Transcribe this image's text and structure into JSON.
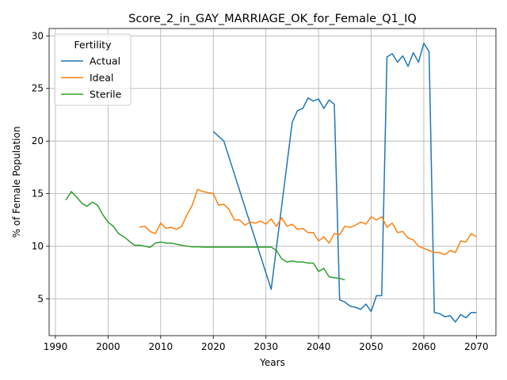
{
  "chart_data": {
    "type": "line",
    "title": "Score_2_in_GAY_MARRIAGE_OK_for_Female_Q1_IQ",
    "xlabel": "Years",
    "ylabel": "% of Female Population",
    "xlim": [
      1988.8,
      2073.7
    ],
    "ylim": [
      1.5,
      30.7
    ],
    "xticks": [
      1990,
      2000,
      2010,
      2020,
      2030,
      2040,
      2050,
      2060,
      2070
    ],
    "yticks": [
      5,
      10,
      15,
      20,
      25,
      30
    ],
    "grid": true,
    "legend": {
      "title": "Fertility",
      "placement": "upper-left"
    },
    "series": [
      {
        "name": "Actual",
        "color": "#1f77b4",
        "x": [
          2020,
          2022,
          2031,
          2035,
          2036,
          2037,
          2038,
          2039,
          2040,
          2041,
          2042,
          2043,
          2044,
          2045,
          2046,
          2047,
          2048,
          2049,
          2050,
          2051,
          2052,
          2053,
          2054,
          2055,
          2056,
          2057,
          2058,
          2059,
          2060,
          2061,
          2062,
          2063,
          2064,
          2065,
          2066,
          2067,
          2068,
          2069,
          2070
        ],
        "y": [
          20.9,
          20.0,
          5.9,
          21.8,
          22.9,
          23.1,
          24.1,
          23.8,
          24.0,
          23.1,
          23.9,
          23.5,
          4.9,
          4.7,
          4.3,
          4.2,
          4.0,
          4.5,
          3.8,
          5.3,
          5.3,
          28.0,
          28.3,
          27.5,
          28.1,
          27.1,
          28.4,
          27.5,
          29.3,
          28.5,
          3.7,
          3.6,
          3.3,
          3.4,
          2.8,
          3.5,
          3.2,
          3.7,
          3.7
        ]
      },
      {
        "name": "Ideal",
        "color": "#ff7f0e",
        "x": [
          2006,
          2007,
          2008,
          2009,
          2010,
          2011,
          2012,
          2013,
          2014,
          2015,
          2016,
          2017,
          2018,
          2019,
          2020,
          2021,
          2022,
          2023,
          2024,
          2025,
          2026,
          2027,
          2028,
          2029,
          2030,
          2031,
          2032,
          2033,
          2034,
          2035,
          2036,
          2037,
          2038,
          2039,
          2040,
          2041,
          2042,
          2043,
          2044,
          2045,
          2046,
          2047,
          2048,
          2049,
          2050,
          2051,
          2052,
          2053,
          2054,
          2055,
          2056,
          2057,
          2058,
          2059,
          2060,
          2061,
          2062,
          2063,
          2064,
          2065,
          2066,
          2067,
          2068,
          2069,
          2070
        ],
        "y": [
          11.8,
          11.9,
          11.4,
          11.2,
          12.2,
          11.7,
          11.8,
          11.6,
          11.9,
          13.0,
          13.9,
          15.4,
          15.2,
          15.1,
          15.0,
          13.9,
          14.0,
          13.5,
          12.5,
          12.5,
          12.0,
          12.3,
          12.2,
          12.4,
          12.1,
          12.6,
          11.9,
          12.7,
          11.9,
          12.1,
          11.6,
          11.7,
          11.3,
          11.3,
          10.5,
          10.9,
          10.3,
          11.2,
          11.1,
          11.9,
          11.8,
          12.0,
          12.3,
          12.1,
          12.8,
          12.5,
          12.8,
          11.8,
          12.2,
          11.3,
          11.4,
          10.8,
          10.6,
          10.0,
          9.8,
          9.6,
          9.4,
          9.4,
          9.2,
          9.6,
          9.4,
          10.5,
          10.4,
          11.2,
          10.9
        ]
      },
      {
        "name": "Sterile",
        "color": "#2ca02c",
        "x": [
          1992,
          1993,
          1994,
          1995,
          1996,
          1997,
          1998,
          1999,
          2000,
          2001,
          2002,
          2003,
          2004,
          2005,
          2006,
          2007,
          2008,
          2009,
          2010,
          2011,
          2012,
          2013,
          2014,
          2015,
          2016,
          2017,
          2018,
          2019,
          2020,
          2021,
          2022,
          2023,
          2024,
          2025,
          2026,
          2027,
          2028,
          2029,
          2030,
          2031,
          2032,
          2033,
          2034,
          2035,
          2036,
          2037,
          2038,
          2039,
          2040,
          2041,
          2042,
          2043,
          2044,
          2045
        ],
        "y": [
          14.4,
          15.2,
          14.7,
          14.1,
          13.8,
          14.2,
          13.9,
          13.0,
          12.3,
          11.9,
          11.2,
          10.9,
          10.5,
          10.1,
          10.1,
          10.0,
          9.9,
          10.3,
          10.4,
          10.3,
          10.3,
          10.2,
          10.1,
          10.0,
          9.95,
          9.95,
          9.92,
          9.92,
          9.92,
          9.92,
          9.92,
          9.92,
          9.92,
          9.92,
          9.92,
          9.92,
          9.92,
          9.92,
          9.92,
          9.92,
          9.6,
          8.8,
          8.5,
          8.6,
          8.5,
          8.5,
          8.4,
          8.4,
          7.6,
          7.9,
          7.1,
          7.0,
          6.95,
          6.8
        ]
      }
    ]
  }
}
